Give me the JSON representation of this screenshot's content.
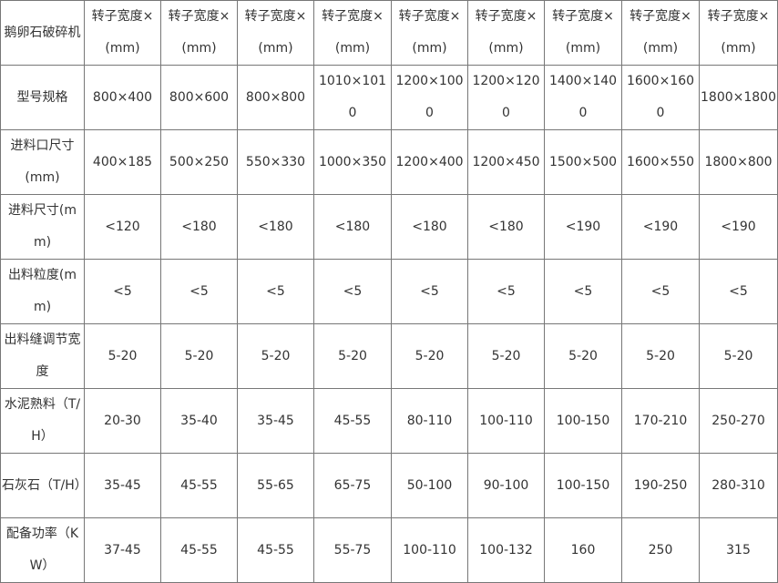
{
  "table": {
    "header": [
      "鹅卵石破碎机",
      "转子宽度×(mm)",
      "转子宽度×(mm)",
      "转子宽度×(mm)",
      "转子宽度×(mm)",
      "转子宽度×(mm)",
      "转子宽度×(mm)",
      "转子宽度×(mm)",
      "转子宽度×(mm)",
      "转子宽度×(mm)"
    ],
    "rows": [
      [
        "型号规格",
        "800×400",
        "800×600",
        "800×800",
        "1010×1010",
        "1200×1000",
        "1200×1200",
        "1400×1400",
        "1600×1600",
        "1800×1800"
      ],
      [
        "进料口尺寸(mm)",
        "400×185",
        "500×250",
        "550×330",
        "1000×350",
        "1200×400",
        "1200×450",
        "1500×500",
        "1600×550",
        "1800×800"
      ],
      [
        "进料尺寸(mm)",
        "<120",
        "<180",
        "<180",
        "<180",
        "<180",
        "<180",
        "<190",
        "<190",
        "<190"
      ],
      [
        "出料粒度(mm)",
        "<5",
        "<5",
        "<5",
        "<5",
        "<5",
        "<5",
        "<5",
        "<5",
        "<5"
      ],
      [
        "出料缝调节宽度",
        "5-20",
        "5-20",
        "5-20",
        "5-20",
        "5-20",
        "5-20",
        "5-20",
        "5-20",
        "5-20"
      ],
      [
        "水泥熟料（T/H）",
        "20-30",
        "35-40",
        "35-45",
        "45-55",
        "80-110",
        "100-110",
        "100-150",
        "170-210",
        "250-270"
      ],
      [
        "石灰石（T/H）",
        "35-45",
        "45-55",
        "55-65",
        "65-75",
        "50-100",
        "90-100",
        "100-150",
        "190-250",
        "280-310"
      ],
      [
        "配备功率（KW）",
        "37-45",
        "45-55",
        "45-55",
        "55-75",
        "100-110",
        "100-132",
        "160",
        "250",
        "315"
      ]
    ]
  }
}
